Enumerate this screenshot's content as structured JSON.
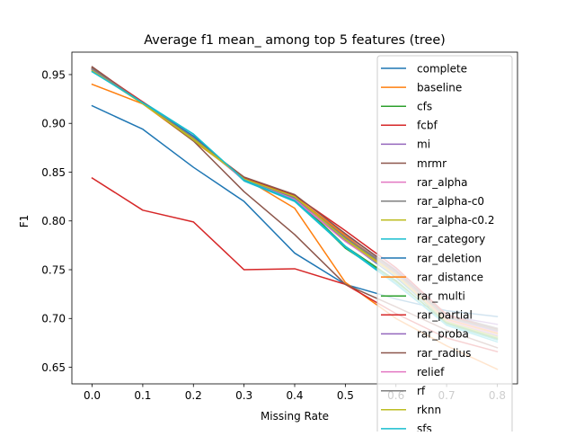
{
  "chart_data": {
    "type": "line",
    "title": "Average f1 mean_ among top 5 features (tree)",
    "xlabel": "Missing Rate",
    "ylabel": "F1",
    "x": [
      0.0,
      0.1,
      0.2,
      0.3,
      0.4,
      0.5,
      0.6,
      0.7,
      0.8
    ],
    "xlim": [
      -0.04,
      0.84
    ],
    "ylim": [
      0.633,
      0.973
    ],
    "xticks": [
      "0.0",
      "0.1",
      "0.2",
      "0.3",
      "0.4",
      "0.5",
      "0.6",
      "0.7",
      "0.8"
    ],
    "yticks": [
      "0.65",
      "0.70",
      "0.75",
      "0.80",
      "0.85",
      "0.90",
      "0.95"
    ],
    "grid": false,
    "legend_position": "top-right",
    "series": [
      {
        "name": "complete",
        "color": "#1f77b4",
        "values": [
          0.918,
          0.894,
          0.855,
          0.82,
          0.767,
          0.735,
          0.72,
          0.708,
          0.702
        ]
      },
      {
        "name": "baseline",
        "color": "#ff7f0e",
        "values": [
          0.94,
          0.92,
          0.882,
          0.844,
          0.813,
          0.737,
          0.7,
          0.672,
          0.648
        ]
      },
      {
        "name": "cfs",
        "color": "#2ca02c",
        "values": [
          0.956,
          0.921,
          0.884,
          0.843,
          0.823,
          0.772,
          0.738,
          0.696,
          0.68
        ]
      },
      {
        "name": "fcbf",
        "color": "#d62728",
        "values": [
          0.844,
          0.811,
          0.799,
          0.75,
          0.751,
          0.735,
          0.705,
          0.68,
          0.666
        ]
      },
      {
        "name": "mi",
        "color": "#9467bd",
        "values": [
          0.956,
          0.922,
          0.884,
          0.842,
          0.824,
          0.786,
          0.75,
          0.703,
          0.694
        ]
      },
      {
        "name": "mrmr",
        "color": "#8c564b",
        "values": [
          0.958,
          0.921,
          0.882,
          0.83,
          0.786,
          0.735,
          0.712,
          0.688,
          0.67
        ]
      },
      {
        "name": "rar_alpha",
        "color": "#e377c2",
        "values": [
          0.955,
          0.922,
          0.886,
          0.842,
          0.822,
          0.781,
          0.746,
          0.7,
          0.686
        ]
      },
      {
        "name": "rar_alpha-c0",
        "color": "#7f7f7f",
        "values": [
          0.956,
          0.921,
          0.884,
          0.843,
          0.824,
          0.784,
          0.748,
          0.704,
          0.69
        ]
      },
      {
        "name": "rar_alpha-c0.2",
        "color": "#bcbd22",
        "values": [
          0.954,
          0.921,
          0.883,
          0.843,
          0.825,
          0.782,
          0.745,
          0.699,
          0.684
        ]
      },
      {
        "name": "rar_category",
        "color": "#17becf",
        "values": [
          0.953,
          0.922,
          0.889,
          0.841,
          0.82,
          0.773,
          0.735,
          0.694,
          0.678
        ]
      },
      {
        "name": "rar_deletion",
        "color": "#1f77b4",
        "values": [
          0.955,
          0.921,
          0.887,
          0.842,
          0.821,
          0.78,
          0.742,
          0.697,
          0.682
        ]
      },
      {
        "name": "rar_distance",
        "color": "#ff7f0e",
        "values": [
          0.956,
          0.92,
          0.884,
          0.843,
          0.825,
          0.785,
          0.745,
          0.699,
          0.685
        ]
      },
      {
        "name": "rar_multi",
        "color": "#2ca02c",
        "values": [
          0.955,
          0.921,
          0.885,
          0.844,
          0.824,
          0.774,
          0.739,
          0.695,
          0.679
        ]
      },
      {
        "name": "rar_partial",
        "color": "#d62728",
        "values": [
          0.957,
          0.922,
          0.884,
          0.844,
          0.826,
          0.79,
          0.752,
          0.704,
          0.688
        ]
      },
      {
        "name": "rar_proba",
        "color": "#9467bd",
        "values": [
          0.955,
          0.921,
          0.885,
          0.843,
          0.823,
          0.783,
          0.747,
          0.701,
          0.687
        ]
      },
      {
        "name": "rar_radius",
        "color": "#8c564b",
        "values": [
          0.957,
          0.921,
          0.884,
          0.845,
          0.827,
          0.787,
          0.749,
          0.702,
          0.689
        ]
      },
      {
        "name": "relief",
        "color": "#e377c2",
        "values": [
          0.954,
          0.921,
          0.885,
          0.842,
          0.822,
          0.779,
          0.744,
          0.698,
          0.683
        ]
      },
      {
        "name": "rf",
        "color": "#7f7f7f",
        "values": [
          0.956,
          0.921,
          0.885,
          0.843,
          0.824,
          0.783,
          0.747,
          0.701,
          0.688
        ]
      },
      {
        "name": "rknn",
        "color": "#bcbd22",
        "values": [
          0.954,
          0.92,
          0.884,
          0.843,
          0.825,
          0.781,
          0.744,
          0.697,
          0.681
        ]
      },
      {
        "name": "sfs",
        "color": "#17becf",
        "values": [
          0.953,
          0.921,
          0.889,
          0.842,
          0.821,
          0.774,
          0.736,
          0.693,
          0.676
        ]
      }
    ]
  }
}
